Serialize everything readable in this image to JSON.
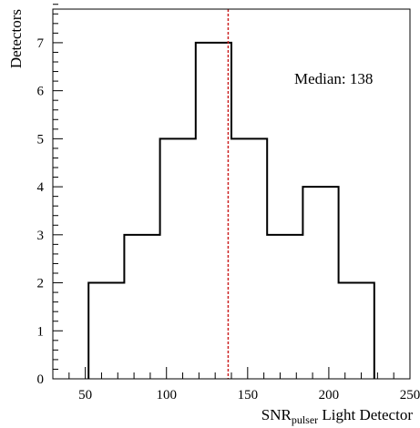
{
  "chart_data": {
    "type": "histogram",
    "bin_edges": [
      52,
      74,
      96,
      118,
      140,
      162,
      184,
      206,
      228
    ],
    "counts": [
      2,
      3,
      5,
      7,
      5,
      3,
      4,
      2
    ],
    "xlabel": {
      "main": "SNR",
      "subscript": "pulser",
      "suffix": " Light Detector"
    },
    "ylabel": "Detectors",
    "xlim": [
      30,
      250
    ],
    "ylim": [
      0,
      7.7
    ],
    "xticks": [
      50,
      100,
      150,
      200,
      250
    ],
    "yticks": [
      0,
      1,
      2,
      3,
      4,
      5,
      6,
      7
    ],
    "x_minor_step": 10,
    "y_minor_step": 0.2,
    "median": 138,
    "median_line_color": "#cc2222",
    "annotation": "Median: 138",
    "grid": false,
    "legend": "none"
  }
}
